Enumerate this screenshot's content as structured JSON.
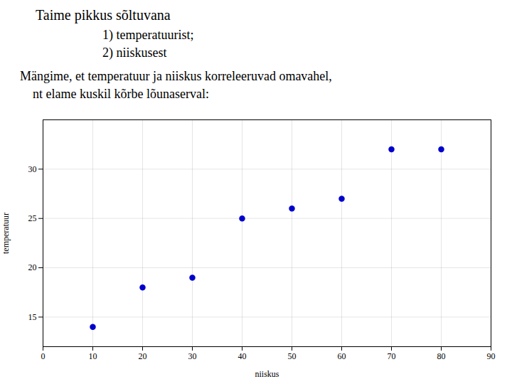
{
  "chart_data": {
    "type": "scatter",
    "title": "Taime pikkus sõltuvana",
    "subtitle": [
      "1) temperatuurist;",
      "2) niiskusest"
    ],
    "annotations": [
      "Mängime, et temperatuur ja niiskus korreleeruvad omavahel,",
      "    nt elame kuskil kõrbe lõunaserval:"
    ],
    "x": [
      10,
      20,
      30,
      40,
      50,
      60,
      70,
      80
    ],
    "values": [
      14,
      18,
      19,
      25,
      26,
      27,
      32,
      32
    ],
    "xlabel": "niiskus",
    "ylabel": "temperatuur",
    "xlim": [
      0,
      90
    ],
    "ylim": [
      12,
      35
    ],
    "xticks": [
      0,
      10,
      20,
      30,
      40,
      50,
      60,
      70,
      80,
      90
    ],
    "yticks": [
      15,
      20,
      25,
      30
    ],
    "color": "#0000cc",
    "grid": true
  }
}
